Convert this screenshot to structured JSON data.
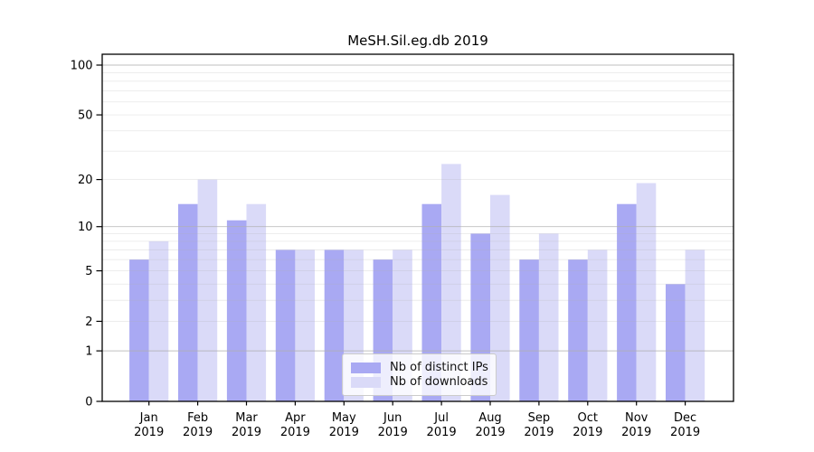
{
  "chart_data": {
    "type": "bar",
    "title": "MeSH.Sil.eg.db 2019",
    "categories": [
      "Jan",
      "Feb",
      "Mar",
      "Apr",
      "May",
      "Jun",
      "Jul",
      "Aug",
      "Sep",
      "Oct",
      "Nov",
      "Dec"
    ],
    "category_sublabel": "2019",
    "series": [
      {
        "name": "Nb of distinct IPs",
        "color": "#a9a9f3",
        "values": [
          6,
          14,
          11,
          7,
          7,
          6,
          14,
          9,
          6,
          6,
          14,
          4
        ]
      },
      {
        "name": "Nb of downloads",
        "color": "#dadaf8",
        "values": [
          8,
          20,
          14,
          7,
          7,
          7,
          25,
          16,
          9,
          7,
          19,
          7
        ]
      }
    ],
    "yscale": "log1p",
    "ylim": [
      0,
      100
    ],
    "yticks": [
      0,
      1,
      2,
      5,
      10,
      20,
      50,
      100
    ],
    "minor_gridlines": [
      2,
      3,
      4,
      5,
      6,
      7,
      8,
      9,
      20,
      30,
      40,
      50,
      60,
      70,
      80,
      90
    ],
    "major_gridlines": [
      1,
      10,
      100
    ],
    "grid": true,
    "legend_position": "lower center",
    "colors": {
      "axis": "#000000",
      "grid": "#b0b0b0",
      "text": "#000000"
    }
  }
}
